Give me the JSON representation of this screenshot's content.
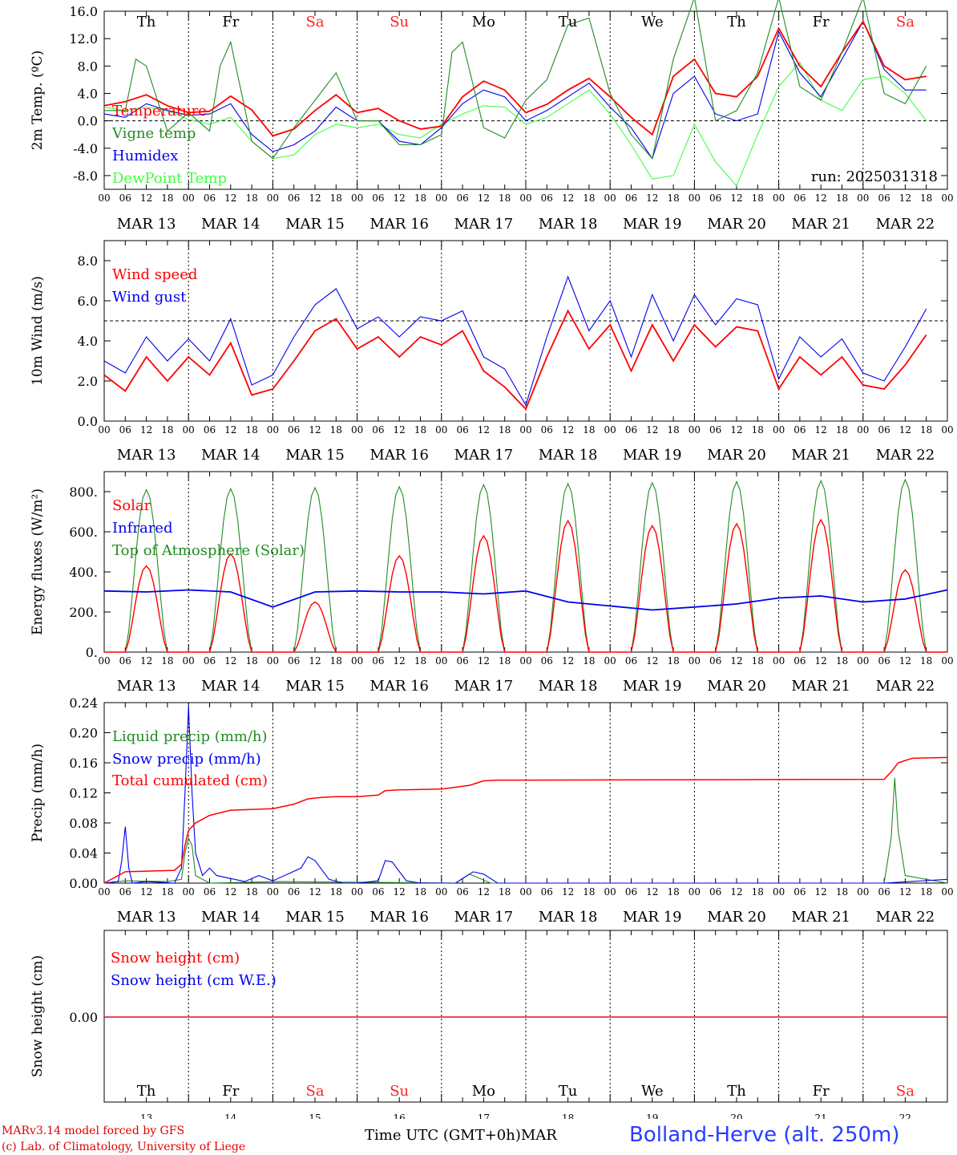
{
  "location": "Bolland-Herve (alt. 250m)",
  "credits": [
    "MARv3.14 model forced by GFS",
    "(c) Lab. of Climatology, University of Liege"
  ],
  "time_axis_label": "Time UTC (GMT+0h)",
  "month_label": "MAR",
  "days": {
    "dates": [
      "MAR 13",
      "MAR 14",
      "MAR 15",
      "MAR 16",
      "MAR 17",
      "MAR 18",
      "MAR 19",
      "MAR 20",
      "MAR 21",
      "MAR 22"
    ],
    "numbers": [
      "13",
      "14",
      "15",
      "16",
      "17",
      "18",
      "19",
      "20",
      "21",
      "22"
    ],
    "weekdays": [
      "Th",
      "Fr",
      "Sa",
      "Su",
      "Mo",
      "Tu",
      "We",
      "Th",
      "Fr",
      "Sa"
    ],
    "weekend_color": "#ff2020",
    "weekday_color": "#000000",
    "hour_ticks": [
      "00",
      "06",
      "12",
      "18"
    ],
    "last_tick": "00"
  },
  "chart_data": [
    {
      "type": "line",
      "id": "temp",
      "ylabel": "2m Temp. (ºC)",
      "ylim": [
        -10,
        16
      ],
      "yticks": [
        "-8.0",
        "-4.0",
        "0.0",
        "4.0",
        "8.0",
        "12.0",
        "16.0"
      ],
      "ytick_values": [
        -8,
        -4,
        0,
        4,
        8,
        12,
        16
      ],
      "ref_line": 0,
      "annotation": "run: 2025031318",
      "x_unit": "hours since MAR 13 00 UTC",
      "series": [
        {
          "name": "Temperature",
          "color": "#ff0000",
          "x": [
            0,
            6,
            12,
            18,
            24,
            30,
            36,
            42,
            48,
            54,
            60,
            66,
            72,
            78,
            84,
            90,
            96,
            102,
            108,
            114,
            120,
            126,
            132,
            138,
            144,
            150,
            156,
            162,
            168,
            174,
            180,
            186,
            192,
            198,
            204,
            210,
            216,
            222,
            228,
            234
          ],
          "values": [
            2.2,
            2.8,
            3.8,
            2.2,
            1.2,
            1.4,
            3.6,
            1.6,
            -2.2,
            -1.2,
            1.5,
            3.8,
            1.2,
            1.8,
            0,
            -1.2,
            -0.8,
            3.5,
            5.8,
            4.5,
            1.2,
            2.4,
            4.5,
            6.2,
            3.5,
            0.5,
            -2,
            6.5,
            9,
            4,
            3.5,
            6.5,
            13.5,
            8,
            5,
            10,
            14.5,
            8,
            6,
            6.5
          ]
        },
        {
          "name": "Vigne temp",
          "color": "#228b22",
          "x": [
            0,
            6,
            9,
            12,
            18,
            24,
            30,
            33,
            36,
            42,
            48,
            54,
            60,
            66,
            72,
            78,
            84,
            90,
            96,
            99,
            102,
            108,
            114,
            120,
            126,
            132,
            138,
            144,
            150,
            156,
            162,
            168,
            174,
            180,
            186,
            192,
            198,
            204,
            210,
            216,
            222,
            228,
            234
          ],
          "values": [
            1.5,
            1.5,
            9,
            8,
            -1.5,
            1.2,
            -1.5,
            8,
            11.5,
            -3,
            -5.5,
            -1,
            3,
            7,
            0,
            0,
            -3.5,
            -3.5,
            -2,
            10,
            11.5,
            -1,
            -2.5,
            3,
            6,
            14,
            15,
            4,
            -2,
            -5.5,
            9,
            18,
            0,
            1.5,
            7,
            18,
            5,
            3,
            10,
            18,
            4,
            2.5,
            8
          ]
        },
        {
          "name": "Humidex",
          "color": "#0000ee",
          "x": [
            0,
            6,
            12,
            18,
            24,
            30,
            36,
            42,
            48,
            54,
            60,
            66,
            72,
            78,
            84,
            90,
            96,
            102,
            108,
            114,
            120,
            126,
            132,
            138,
            144,
            150,
            156,
            162,
            168,
            174,
            180,
            186,
            192,
            198,
            204,
            210,
            216,
            222,
            228,
            234
          ],
          "values": [
            1,
            0.5,
            2.5,
            1.5,
            0.8,
            1,
            2.5,
            -2,
            -4.5,
            -3.5,
            -1.5,
            2,
            0,
            0,
            -3,
            -3.5,
            -1,
            2.5,
            4.5,
            3.5,
            0,
            1.5,
            3.5,
            5.5,
            2,
            -1,
            -5.5,
            4,
            6.5,
            1,
            0,
            1,
            13,
            7,
            3.5,
            9,
            14.5,
            7.5,
            4.5,
            4.5
          ]
        },
        {
          "name": "DewPoint Temp",
          "color": "#40ff40",
          "x": [
            0,
            6,
            12,
            18,
            24,
            30,
            36,
            42,
            48,
            54,
            60,
            66,
            72,
            78,
            84,
            90,
            96,
            102,
            108,
            114,
            120,
            126,
            132,
            138,
            144,
            150,
            156,
            162,
            168,
            174,
            180,
            186,
            192,
            198,
            204,
            210,
            216,
            222,
            228,
            234
          ],
          "values": [
            2,
            1.5,
            2,
            1.5,
            0.2,
            -0.5,
            0.5,
            -3,
            -5.5,
            -5,
            -2,
            -0.5,
            -1,
            -0.5,
            -2,
            -2.5,
            -0.5,
            1,
            2.2,
            2,
            -0.5,
            0.5,
            2.5,
            4.5,
            1,
            -3.5,
            -8.5,
            -8,
            -0.5,
            -6,
            -9.5,
            -2,
            5,
            8.5,
            3,
            1.5,
            6,
            6.5,
            4,
            0
          ]
        }
      ]
    },
    {
      "type": "line",
      "id": "wind",
      "ylabel": "10m Wind (m/s)",
      "ylim": [
        0,
        9
      ],
      "yticks": [
        "0.0",
        "2.0",
        "4.0",
        "6.0",
        "8.0"
      ],
      "ytick_values": [
        0,
        2,
        4,
        6,
        8
      ],
      "ref_line": 5,
      "series": [
        {
          "name": "Wind speed",
          "color": "#ff0000",
          "x": [
            0,
            6,
            12,
            18,
            24,
            30,
            36,
            42,
            48,
            54,
            60,
            66,
            72,
            78,
            84,
            90,
            96,
            102,
            108,
            114,
            120,
            126,
            132,
            138,
            144,
            150,
            156,
            162,
            168,
            174,
            180,
            186,
            192,
            198,
            204,
            210,
            216,
            222,
            228,
            234
          ],
          "values": [
            2.3,
            1.5,
            3.2,
            2,
            3.2,
            2.3,
            3.9,
            1.3,
            1.6,
            3,
            4.5,
            5.1,
            3.6,
            4.2,
            3.2,
            4.2,
            3.8,
            4.5,
            2.5,
            1.7,
            0.6,
            3.2,
            5.5,
            3.6,
            4.8,
            2.5,
            4.8,
            3,
            4.8,
            3.7,
            4.7,
            4.5,
            1.6,
            3.2,
            2.3,
            3.2,
            1.8,
            1.6,
            2.8,
            4.3
          ]
        },
        {
          "name": "Wind gust",
          "color": "#0000ee",
          "x": [
            0,
            6,
            12,
            18,
            24,
            30,
            36,
            42,
            48,
            54,
            60,
            66,
            72,
            78,
            84,
            90,
            96,
            102,
            108,
            114,
            120,
            126,
            132,
            138,
            144,
            150,
            156,
            162,
            168,
            174,
            180,
            186,
            192,
            198,
            204,
            210,
            216,
            222,
            228,
            234
          ],
          "values": [
            3,
            2.4,
            4.2,
            3,
            4.1,
            3,
            5.1,
            1.8,
            2.3,
            4.2,
            5.8,
            6.6,
            4.6,
            5.2,
            4.2,
            5.2,
            5,
            5.5,
            3.2,
            2.6,
            0.8,
            4.2,
            7.2,
            4.5,
            6,
            3.2,
            6.3,
            4,
            6.3,
            4.8,
            6.1,
            5.8,
            2.1,
            4.2,
            3.2,
            4.1,
            2.4,
            2,
            3.7,
            5.6
          ]
        }
      ]
    },
    {
      "type": "line",
      "id": "energy",
      "ylabel": "Energy fluxes (W/m²)",
      "ylim": [
        0,
        900
      ],
      "yticks": [
        "0.",
        "200.",
        "400.",
        "600.",
        "800."
      ],
      "ytick_values": [
        0,
        200,
        400,
        600,
        800
      ],
      "series": [
        {
          "name": "Solar",
          "color": "#ff0000",
          "daily_peaks": [
            430,
            490,
            250,
            480,
            580,
            655,
            630,
            640,
            660,
            410
          ]
        },
        {
          "name": "Infrared",
          "color": "#0000ee",
          "x": [
            0,
            12,
            24,
            36,
            48,
            60,
            72,
            84,
            96,
            108,
            120,
            132,
            144,
            156,
            168,
            180,
            192,
            204,
            216,
            228,
            240
          ],
          "values": [
            305,
            300,
            310,
            300,
            225,
            300,
            305,
            300,
            300,
            290,
            305,
            250,
            230,
            210,
            225,
            240,
            270,
            280,
            250,
            265,
            310
          ]
        },
        {
          "name": "Top of Atmosphere (Solar)",
          "color": "#228b22",
          "daily_peaks": [
            810,
            815,
            820,
            825,
            835,
            840,
            845,
            850,
            855,
            860
          ]
        }
      ]
    },
    {
      "type": "line",
      "id": "precip",
      "ylabel": "Precip (mm/h)",
      "ylim": [
        0,
        0.24
      ],
      "yticks": [
        "0.00",
        "0.04",
        "0.08",
        "0.12",
        "0.16",
        "0.20",
        "0.24"
      ],
      "ytick_values": [
        0,
        0.04,
        0.08,
        0.12,
        0.16,
        0.2,
        0.24
      ],
      "series": [
        {
          "name": "Liquid precip (mm/h)",
          "color": "#228b22",
          "x": [
            0,
            6,
            18,
            22,
            23,
            24,
            25,
            26,
            30,
            50,
            100,
            104,
            110,
            222,
            224,
            225,
            226,
            228,
            240
          ],
          "values": [
            0,
            0.003,
            0.002,
            0.005,
            0.04,
            0.06,
            0.05,
            0.01,
            0,
            0.002,
            0,
            0.012,
            0,
            0,
            0.06,
            0.14,
            0.07,
            0.01,
            0
          ]
        },
        {
          "name": "Snow precip (mm/h)",
          "color": "#0000ee",
          "x": [
            0,
            4,
            5,
            6,
            7,
            8,
            12,
            20,
            22,
            23,
            24,
            25,
            26,
            28,
            30,
            32,
            40,
            44,
            48,
            56,
            58,
            60,
            64,
            68,
            72,
            78,
            80,
            82,
            86,
            90,
            100,
            105,
            108,
            112,
            222,
            240
          ],
          "values": [
            0,
            0.002,
            0.03,
            0.075,
            0.02,
            0,
            0.002,
            0,
            0.02,
            0.12,
            0.235,
            0.12,
            0.04,
            0.01,
            0.02,
            0.01,
            0.002,
            0.01,
            0.003,
            0.02,
            0.035,
            0.03,
            0.005,
            0,
            0,
            0.003,
            0.03,
            0.028,
            0.003,
            0,
            0,
            0.015,
            0.012,
            0,
            0,
            0.005
          ]
        },
        {
          "name": "Total cumulated (cm)",
          "color": "#ff0000",
          "x": [
            0,
            6,
            20,
            22,
            23,
            24,
            26,
            30,
            36,
            48,
            54,
            58,
            62,
            66,
            72,
            78,
            80,
            84,
            96,
            104,
            108,
            112,
            120,
            222,
            224,
            226,
            230,
            240
          ],
          "values": [
            0,
            0.015,
            0.017,
            0.025,
            0.05,
            0.07,
            0.08,
            0.09,
            0.097,
            0.099,
            0.105,
            0.112,
            0.114,
            0.115,
            0.115,
            0.117,
            0.123,
            0.124,
            0.125,
            0.13,
            0.136,
            0.137,
            0.137,
            0.138,
            0.148,
            0.16,
            0.166,
            0.167
          ]
        }
      ]
    },
    {
      "type": "line",
      "id": "snow",
      "ylabel": "Snow height (cm)",
      "yticks": [
        "0.00"
      ],
      "ytick_values": [
        0
      ],
      "series": [
        {
          "name": "Snow height (cm)",
          "color": "#ff0000",
          "x": [
            0,
            240
          ],
          "values": [
            0,
            0
          ]
        },
        {
          "name": "Snow height (cm W.E.)",
          "color": "#0000ee",
          "x": [
            0,
            240
          ],
          "values": [
            0,
            0
          ]
        }
      ]
    }
  ]
}
